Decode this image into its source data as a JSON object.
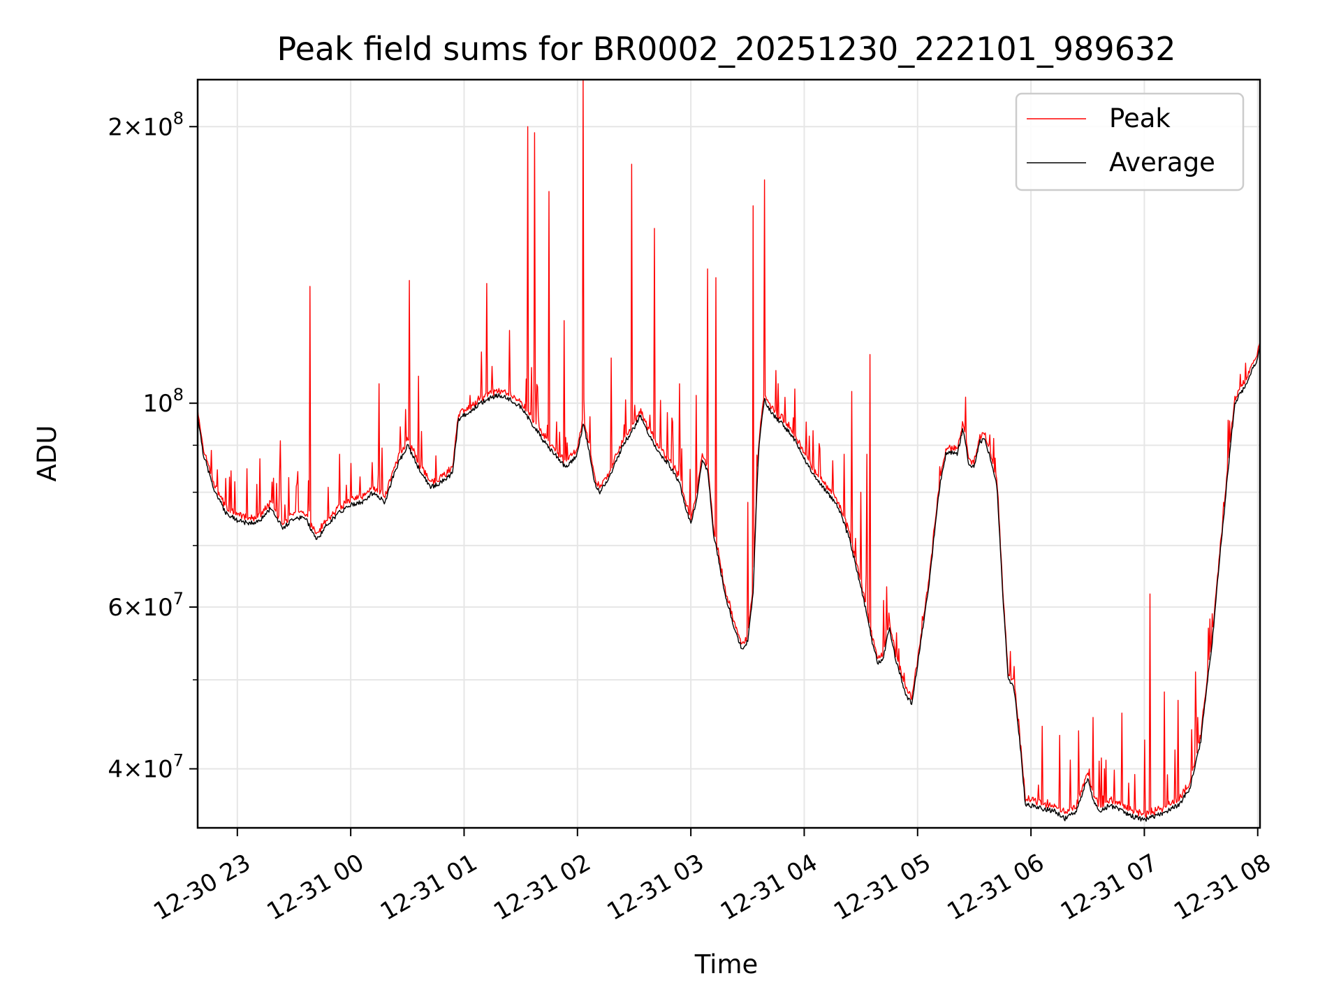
{
  "chart_data": {
    "type": "line",
    "title": "Peak field sums for BR0002_20251230_222101_989632",
    "xlabel": "Time",
    "ylabel": "ADU",
    "yscale": "log",
    "ylim": [
      34500000,
      225000000
    ],
    "xlim_hours": [
      -1.35,
      8.02
    ],
    "x_unit": "hours relative to 12-31 00:00",
    "grid": true,
    "legend_position": "upper right",
    "x_ticks": [
      {
        "value": -1,
        "label": "12-30 23"
      },
      {
        "value": 0,
        "label": "12-31 00"
      },
      {
        "value": 1,
        "label": "12-31 01"
      },
      {
        "value": 2,
        "label": "12-31 02"
      },
      {
        "value": 3,
        "label": "12-31 03"
      },
      {
        "value": 4,
        "label": "12-31 04"
      },
      {
        "value": 5,
        "label": "12-31 05"
      },
      {
        "value": 6,
        "label": "12-31 06"
      },
      {
        "value": 7,
        "label": "12-31 07"
      },
      {
        "value": 8,
        "label": "12-31 08"
      }
    ],
    "y_ticks": [
      {
        "value": 40000000,
        "mant": "4",
        "exp": "7"
      },
      {
        "value": 60000000,
        "mant": "6",
        "exp": "7"
      },
      {
        "value": 100000000,
        "mant": "10",
        "exp": "8"
      },
      {
        "value": 200000000,
        "mant": "2",
        "exp": "8"
      }
    ],
    "y_minor_ticks": [
      50000000,
      70000000,
      80000000,
      90000000
    ],
    "series": [
      {
        "name": "Peak",
        "color": "#ff0000"
      },
      {
        "name": "Average",
        "color": "#000000"
      }
    ],
    "average_curve": [
      [
        -1.35,
        97
      ],
      [
        -1.3,
        88
      ],
      [
        -1.2,
        80
      ],
      [
        -1.1,
        76
      ],
      [
        -1.0,
        74.5
      ],
      [
        -0.9,
        74
      ],
      [
        -0.8,
        74.5
      ],
      [
        -0.7,
        77
      ],
      [
        -0.6,
        73
      ],
      [
        -0.5,
        75
      ],
      [
        -0.4,
        75
      ],
      [
        -0.3,
        71
      ],
      [
        -0.2,
        74
      ],
      [
        -0.1,
        76
      ],
      [
        0.0,
        77.5
      ],
      [
        0.1,
        78
      ],
      [
        0.2,
        80
      ],
      [
        0.3,
        78
      ],
      [
        0.4,
        85
      ],
      [
        0.5,
        90
      ],
      [
        0.6,
        85
      ],
      [
        0.7,
        81
      ],
      [
        0.8,
        82
      ],
      [
        0.9,
        84
      ],
      [
        0.95,
        96
      ],
      [
        1.0,
        97
      ],
      [
        1.1,
        99
      ],
      [
        1.2,
        101
      ],
      [
        1.3,
        102
      ],
      [
        1.4,
        101
      ],
      [
        1.5,
        99
      ],
      [
        1.6,
        95
      ],
      [
        1.7,
        91
      ],
      [
        1.8,
        88
      ],
      [
        1.9,
        85
      ],
      [
        2.0,
        88
      ],
      [
        2.05,
        95
      ],
      [
        2.1,
        89
      ],
      [
        2.15,
        82
      ],
      [
        2.2,
        80
      ],
      [
        2.3,
        84
      ],
      [
        2.4,
        90
      ],
      [
        2.5,
        94
      ],
      [
        2.55,
        97
      ],
      [
        2.6,
        94
      ],
      [
        2.7,
        89
      ],
      [
        2.8,
        86
      ],
      [
        2.9,
        82
      ],
      [
        2.95,
        77
      ],
      [
        3.0,
        74
      ],
      [
        3.05,
        78
      ],
      [
        3.1,
        87
      ],
      [
        3.15,
        84
      ],
      [
        3.2,
        72
      ],
      [
        3.3,
        62
      ],
      [
        3.4,
        56
      ],
      [
        3.45,
        54
      ],
      [
        3.5,
        55
      ],
      [
        3.55,
        62
      ],
      [
        3.6,
        90
      ],
      [
        3.65,
        101
      ],
      [
        3.7,
        98
      ],
      [
        3.8,
        95
      ],
      [
        3.9,
        92
      ],
      [
        4.0,
        87
      ],
      [
        4.1,
        83
      ],
      [
        4.2,
        80
      ],
      [
        4.3,
        77
      ],
      [
        4.4,
        71
      ],
      [
        4.5,
        63
      ],
      [
        4.6,
        55
      ],
      [
        4.65,
        52
      ],
      [
        4.7,
        53
      ],
      [
        4.75,
        57
      ],
      [
        4.8,
        53
      ],
      [
        4.9,
        48
      ],
      [
        4.95,
        47
      ],
      [
        5.0,
        52
      ],
      [
        5.1,
        63
      ],
      [
        5.2,
        82
      ],
      [
        5.25,
        88
      ],
      [
        5.3,
        88.5
      ],
      [
        5.35,
        88
      ],
      [
        5.4,
        94
      ],
      [
        5.45,
        86
      ],
      [
        5.5,
        85
      ],
      [
        5.55,
        91
      ],
      [
        5.6,
        91
      ],
      [
        5.7,
        81
      ],
      [
        5.75,
        62
      ],
      [
        5.8,
        50
      ],
      [
        5.85,
        49
      ],
      [
        5.9,
        43
      ],
      [
        5.95,
        36.5
      ],
      [
        6.0,
        36.5
      ],
      [
        6.1,
        36.2
      ],
      [
        6.2,
        36
      ],
      [
        6.3,
        35.3
      ],
      [
        6.4,
        36
      ],
      [
        6.5,
        39
      ],
      [
        6.55,
        37
      ],
      [
        6.6,
        36
      ],
      [
        6.7,
        36.5
      ],
      [
        6.8,
        36
      ],
      [
        6.9,
        35.5
      ],
      [
        7.0,
        35.2
      ],
      [
        7.1,
        35.5
      ],
      [
        7.2,
        36
      ],
      [
        7.3,
        36.5
      ],
      [
        7.4,
        38
      ],
      [
        7.5,
        43
      ],
      [
        7.6,
        55
      ],
      [
        7.7,
        75
      ],
      [
        7.8,
        100
      ],
      [
        7.9,
        105
      ],
      [
        8.0,
        112
      ],
      [
        8.02,
        115
      ]
    ],
    "peak_spikes": [
      [
        -0.8,
        87
      ],
      [
        -0.62,
        91
      ],
      [
        -0.55,
        83
      ],
      [
        -0.36,
        134
      ],
      [
        -0.2,
        81
      ],
      [
        -0.1,
        88
      ],
      [
        0.0,
        86
      ],
      [
        0.25,
        105
      ],
      [
        0.52,
        136
      ],
      [
        0.6,
        107
      ],
      [
        1.05,
        102
      ],
      [
        1.2,
        135
      ],
      [
        1.4,
        120
      ],
      [
        1.56,
        200
      ],
      [
        1.62,
        197
      ],
      [
        1.75,
        170
      ],
      [
        1.88,
        123
      ],
      [
        2.05,
        229
      ],
      [
        2.3,
        112
      ],
      [
        2.48,
        182
      ],
      [
        2.68,
        155
      ],
      [
        2.9,
        105
      ],
      [
        3.05,
        102
      ],
      [
        3.15,
        140
      ],
      [
        3.22,
        137
      ],
      [
        3.5,
        78
      ],
      [
        3.55,
        164
      ],
      [
        3.65,
        175
      ],
      [
        4.35,
        88
      ],
      [
        4.42,
        103
      ],
      [
        4.5,
        80
      ],
      [
        4.55,
        88
      ],
      [
        4.58,
        113
      ],
      [
        4.7,
        61
      ],
      [
        6.1,
        44.5
      ],
      [
        6.25,
        43.5
      ],
      [
        6.42,
        44
      ],
      [
        6.55,
        45.5
      ],
      [
        6.65,
        40
      ],
      [
        6.8,
        46
      ],
      [
        7.0,
        43
      ],
      [
        7.05,
        62
      ],
      [
        7.18,
        48.5
      ],
      [
        7.3,
        47.5
      ],
      [
        7.45,
        51
      ],
      [
        7.6,
        59
      ],
      [
        7.7,
        78
      ]
    ]
  }
}
